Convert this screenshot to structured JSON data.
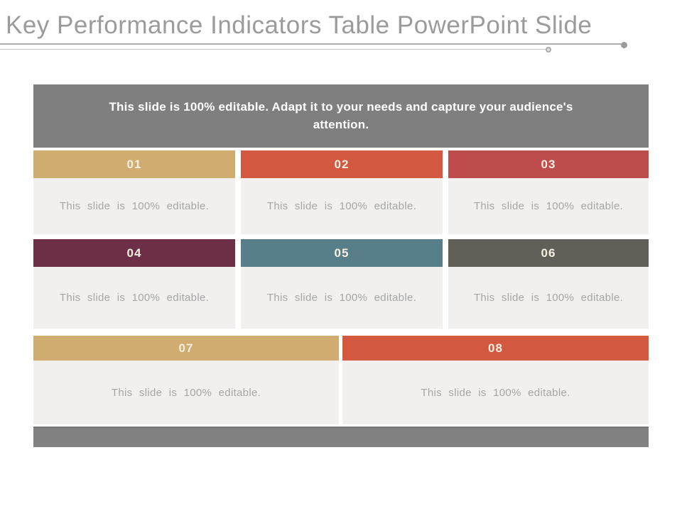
{
  "title": "Key Performance Indicators Table PowerPoint Slide",
  "banner": {
    "text": "This slide is 100% editable. Adapt it to your needs and capture your audience's attention.",
    "bg": "#7f7f7f"
  },
  "grid": {
    "body_bg": "#f1f0ee",
    "cells": [
      {
        "number": "01",
        "body": "This slide is 100% editable.",
        "header_color": "#d1ac71"
      },
      {
        "number": "02",
        "body": "This slide is 100% editable.",
        "header_color": "#d25940"
      },
      {
        "number": "03",
        "body": "This slide is 100% editable.",
        "header_color": "#bf4c4c"
      },
      {
        "number": "04",
        "body": "This slide is 100% editable.",
        "header_color": "#6d2e47"
      },
      {
        "number": "05",
        "body": "This slide is 100% editable.",
        "header_color": "#587e89"
      },
      {
        "number": "06",
        "body": "This slide is 100% editable.",
        "header_color": "#615f58"
      },
      {
        "number": "07",
        "body": "This slide is 100% editable.",
        "header_color": "#d1ac71"
      },
      {
        "number": "08",
        "body": "This slide is 100% editable.",
        "header_color": "#d25940"
      }
    ]
  },
  "footer": {
    "bg": "#818181"
  }
}
